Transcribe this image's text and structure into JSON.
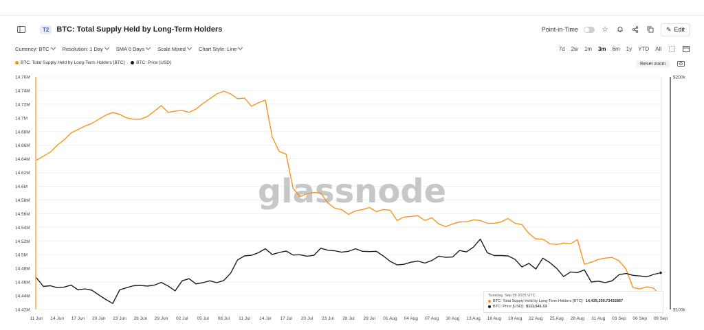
{
  "header": {
    "tier": "T2",
    "title": "BTC: Total Supply Held by Long-Term Holders",
    "point_in_time": "Point-in-Time",
    "edit": "Edit"
  },
  "toolbar": {
    "currency": "Currency: BTC",
    "resolution": "Resolution: 1 Day",
    "sma": "SMA 0 Days",
    "scale": "Scale Mixed",
    "chart_style": "Chart Style: Line",
    "ranges": [
      "7d",
      "2w",
      "1m",
      "3m",
      "6m",
      "1y",
      "YTD",
      "All"
    ],
    "active_range": "3m"
  },
  "legend": {
    "lth": "BTC: Total Supply Held by Long-Term Holders [BTC]",
    "price": "BTC: Price [USD]",
    "reset_zoom": "Reset zoom"
  },
  "watermark": "glassnode",
  "tooltip": {
    "date": "Tuesday, Sep 09 2025 UTC",
    "lth_label": "BTC: Total Supply Held by Long-Term Holders [BTC]:",
    "lth_value": "14,439,250.73432867",
    "price_label": "BTC: Price [USD]:",
    "price_value": "$111,541.13"
  },
  "colors": {
    "lth": "#f7931a",
    "price": "#1a1a1a"
  },
  "chart_data": {
    "type": "line",
    "x": [
      "11 Jun",
      "12 Jun",
      "13 Jun",
      "14 Jun",
      "15 Jun",
      "16 Jun",
      "17 Jun",
      "18 Jun",
      "19 Jun",
      "20 Jun",
      "21 Jun",
      "22 Jun",
      "23 Jun",
      "24 Jun",
      "25 Jun",
      "26 Jun",
      "27 Jun",
      "28 Jun",
      "29 Jun",
      "30 Jun",
      "01 Jul",
      "02 Jul",
      "03 Jul",
      "04 Jul",
      "05 Jul",
      "06 Jul",
      "07 Jul",
      "08 Jul",
      "09 Jul",
      "10 Jul",
      "11 Jul",
      "12 Jul",
      "13 Jul",
      "14 Jul",
      "15 Jul",
      "16 Jul",
      "17 Jul",
      "18 Jul",
      "19 Jul",
      "20 Jul",
      "21 Jul",
      "22 Jul",
      "23 Jul",
      "24 Jul",
      "25 Jul",
      "26 Jul",
      "27 Jul",
      "28 Jul",
      "29 Jul",
      "30 Jul",
      "31 Jul",
      "01 Aug",
      "02 Aug",
      "03 Aug",
      "04 Aug",
      "05 Aug",
      "06 Aug",
      "07 Aug",
      "08 Aug",
      "09 Aug",
      "10 Aug",
      "11 Aug",
      "12 Aug",
      "13 Aug",
      "14 Aug",
      "15 Aug",
      "16 Aug",
      "17 Aug",
      "18 Aug",
      "19 Aug",
      "20 Aug",
      "21 Aug",
      "22 Aug",
      "23 Aug",
      "24 Aug",
      "25 Aug",
      "26 Aug",
      "27 Aug",
      "28 Aug",
      "29 Aug",
      "30 Aug",
      "31 Aug",
      "01 Sep",
      "02 Sep",
      "03 Sep",
      "04 Sep",
      "05 Sep",
      "06 Sep",
      "07 Sep",
      "08 Sep",
      "09 Sep"
    ],
    "x_ticks": [
      "11 Jun",
      "14 Jun",
      "17 Jun",
      "20 Jun",
      "23 Jun",
      "26 Jun",
      "29 Jun",
      "02 Jul",
      "05 Jul",
      "08 Jul",
      "11 Jul",
      "14 Jul",
      "17 Jul",
      "20 Jul",
      "23 Jul",
      "26 Jul",
      "29 Jul",
      "01 Aug",
      "04 Aug",
      "07 Aug",
      "10 Aug",
      "13 Aug",
      "16 Aug",
      "19 Aug",
      "22 Aug",
      "25 Aug",
      "28 Aug",
      "31 Aug",
      "03 Sep",
      "06 Sep",
      "09 Sep"
    ],
    "series": [
      {
        "name": "BTC: Total Supply Held by Long-Term Holders [BTC]",
        "axis": "left",
        "values": [
          14.638,
          14.644,
          14.65,
          14.66,
          14.668,
          14.678,
          14.683,
          14.688,
          14.692,
          14.698,
          14.704,
          14.708,
          14.705,
          14.7,
          14.698,
          14.698,
          14.702,
          14.71,
          14.718,
          14.708,
          14.71,
          14.711,
          14.708,
          14.713,
          14.721,
          14.728,
          14.735,
          14.739,
          14.735,
          14.728,
          14.729,
          14.717,
          14.722,
          14.726,
          14.672,
          14.651,
          14.647,
          14.597,
          14.585,
          14.589,
          14.591,
          14.59,
          14.576,
          14.568,
          14.566,
          14.559,
          14.564,
          14.566,
          14.569,
          14.563,
          14.566,
          14.565,
          14.55,
          14.555,
          14.556,
          14.557,
          14.55,
          14.554,
          14.545,
          14.541,
          14.545,
          14.548,
          14.548,
          14.551,
          14.55,
          14.546,
          14.546,
          14.548,
          14.553,
          14.546,
          14.544,
          14.531,
          14.523,
          14.523,
          14.516,
          14.515,
          14.517,
          14.516,
          14.522,
          14.486,
          14.489,
          14.493,
          14.495,
          14.496,
          14.491,
          14.479,
          14.452,
          14.45,
          14.453,
          14.451,
          14.439
        ]
      },
      {
        "name": "BTC: Price [USD]",
        "axis": "right",
        "values": [
          109900,
          107100,
          107300,
          106700,
          106900,
          107500,
          106000,
          106300,
          105900,
          104400,
          103000,
          101800,
          106000,
          106700,
          107300,
          107400,
          107200,
          107500,
          108400,
          107200,
          105700,
          108900,
          109600,
          107900,
          108300,
          108900,
          108300,
          109000,
          111400,
          115900,
          117300,
          117500,
          118400,
          119800,
          117800,
          118500,
          119000,
          117600,
          117700,
          117200,
          117500,
          120000,
          119300,
          119100,
          118600,
          118900,
          119800,
          118900,
          118800,
          118900,
          117300,
          115400,
          114200,
          114400,
          115100,
          115500,
          114800,
          115700,
          117200,
          116800,
          116900,
          119200,
          118700,
          120400,
          123300,
          118400,
          117400,
          117400,
          117300,
          116100,
          113500,
          114700,
          112800,
          116500,
          115000,
          113000,
          110300,
          111800,
          111600,
          112500,
          108500,
          108800,
          108300,
          108900,
          110900,
          111300,
          110700,
          110500,
          110200,
          111000,
          111541
        ]
      }
    ],
    "y_left": {
      "ticks": [
        "14.42M",
        "14.44M",
        "14.46M",
        "14.48M",
        "14.5M",
        "14.52M",
        "14.54M",
        "14.56M",
        "14.58M",
        "14.6M",
        "14.62M",
        "14.64M",
        "14.66M",
        "14.68M",
        "14.7M",
        "14.72M",
        "14.74M",
        "14.76M"
      ],
      "range": [
        14.42,
        14.76
      ]
    },
    "y_right": {
      "ticks": [
        "$100k",
        "$200k"
      ],
      "scale": "log",
      "range": [
        100000,
        200000
      ]
    },
    "grid": true,
    "legend_position": "top-left"
  }
}
